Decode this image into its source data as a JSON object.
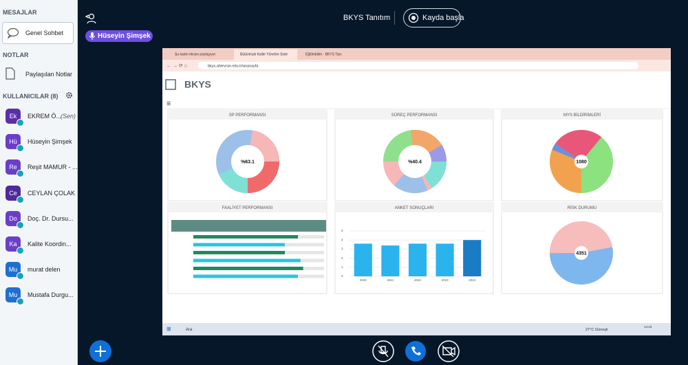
{
  "sidebar": {
    "messages_title": "MESAJLAR",
    "public_chat": "Genel Sohbet",
    "notes_title": "NOTLAR",
    "shared_notes": "Paylaşılan Notlar",
    "users_title": "KULLANICILAR (8)",
    "users": [
      {
        "initials": "Ek",
        "name": "EKREM Ö...",
        "suffix": "(Sen)",
        "color": "#5b2fa8"
      },
      {
        "initials": "Hü",
        "name": "Hüseyin Şimşek",
        "color": "#6a3fc8"
      },
      {
        "initials": "Re",
        "name": "Reşit MAMUR - ...",
        "color": "#6a3fc8"
      },
      {
        "initials": "Ce",
        "name": "CEYLAN ÇOLAK",
        "color": "#4f2a9a"
      },
      {
        "initials": "Do",
        "name": "Doç. Dr. Dursu...",
        "color": "#6a3fc8"
      },
      {
        "initials": "Ka",
        "name": "Kalite Koordin...",
        "color": "#6a3fc8"
      },
      {
        "initials": "Mu",
        "name": "murat delen",
        "color": "#1f6fd1"
      },
      {
        "initials": "Mu",
        "name": "Mustafa Durgu...",
        "color": "#1f6fd1"
      }
    ]
  },
  "topbar": {
    "title": "BKYS Tanıtım",
    "record": "Kayda başla",
    "presenter": "Hüseyin Şimşek"
  },
  "screen": {
    "tabs": [
      "Şu kadın ekranı paylaşıyor",
      "Bütünleşik Kalite Yönetim Siste",
      "Eğitimbilim - BKYS Tanı"
    ],
    "url": "bkys.ahievran.edu.tr/anasayfa",
    "logo": "BKYS",
    "taskbar_search": "Ara",
    "weather": "27°C Güneşli",
    "time": "14:23",
    "panels": [
      "SP PERFORMANSI",
      "SÜREÇ PERFORMANSI",
      "MYS BİLDİRİMLERİ",
      "FAALİYET PERFORMANSI",
      "ANKET SONUÇLARI",
      "RİSK DURUMU"
    ],
    "centers": [
      "%63.1",
      "%40.4",
      "1080",
      "4351"
    ]
  },
  "chart_data": {
    "type": "bar",
    "categories": [
      "2020",
      "2021",
      "2022",
      "2023",
      "2024"
    ],
    "values": [
      3.6,
      3.4,
      3.6,
      3.6,
      4.0
    ],
    "colors": [
      "#2bb3ee",
      "#2bb3ee",
      "#2bb3ee",
      "#2bb3ee",
      "#1a7cc4"
    ],
    "ylim": [
      0,
      5
    ],
    "yticks": [
      0,
      1,
      2,
      3,
      4,
      5
    ]
  }
}
